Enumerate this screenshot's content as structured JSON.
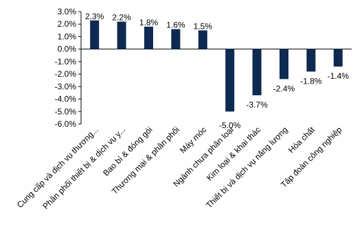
{
  "chart_data": {
    "type": "bar",
    "categories": [
      "Cung cấp và dịch vụ thương...",
      "Phân phối thiết bị & dịch vụ y...",
      "Bao bì & đóng gói",
      "Thương mại & phân phối",
      "Máy móc",
      "Ngành chưa phân loại",
      "Kim loại & khai thác",
      "Thiết bị và dịch vụ năng lượng",
      "Hóa chất",
      "Tập đoàn công nghiệp"
    ],
    "values": [
      2.3,
      2.2,
      1.8,
      1.6,
      1.5,
      -5.0,
      -3.7,
      -2.4,
      -1.8,
      -1.4
    ],
    "value_labels": [
      "2.3%",
      "2.2%",
      "1.8%",
      "1.6%",
      "1.5%",
      "-5.0%",
      "-3.7%",
      "-2.4%",
      "-1.8%",
      "-1.4%"
    ],
    "y_ticks": [
      3,
      2,
      1,
      0,
      -1,
      -2,
      -3,
      -4,
      -5,
      -6
    ],
    "y_tick_labels": [
      "3.0%",
      "2.0%",
      "1.0%",
      "0.0%",
      "-1.0%",
      "-2.0%",
      "-3.0%",
      "-4.0%",
      "-5.0%",
      "-6.0%"
    ],
    "ylim": [
      -6,
      3
    ],
    "grid": false,
    "legend": "none",
    "colors": {
      "bar": "#0e2a50",
      "axis": "#000000"
    }
  }
}
